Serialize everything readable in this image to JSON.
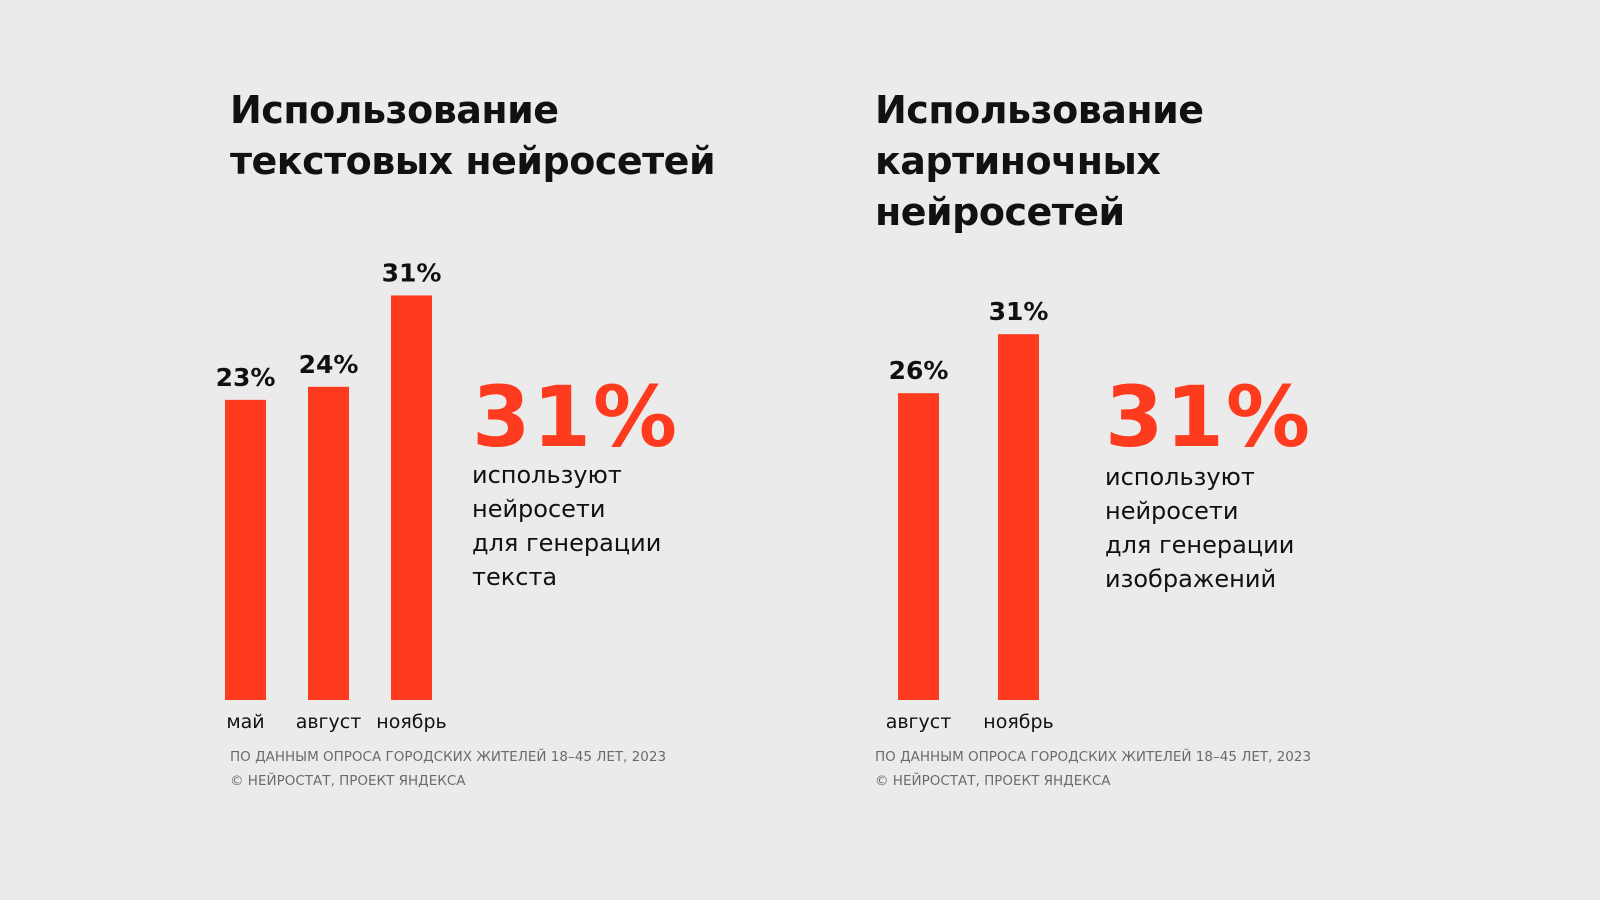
{
  "colors": {
    "background": "#ebebeb",
    "accent": "#ff3b1f",
    "text": "#111111",
    "muted": "#6b6b6b"
  },
  "panels": [
    {
      "title": "Использование текстовых нейросетей",
      "big_number": "31%",
      "description": "используют\nнейросети\nдля генерации\nтекста",
      "source_line1": "ПО ДАННЫМ ОПРОСА ГОРОДСКИХ ЖИТЕЛЕЙ 18–45 ЛЕТ, 2023",
      "source_line2": "© НЕЙРОСТАТ, ПРОЕКТ ЯНДЕКСА"
    },
    {
      "title": "Использование картиночных нейросетей",
      "big_number": "31%",
      "description": "используют\nнейросети\nдля генерации\nизображений",
      "source_line1": "ПО ДАННЫМ ОПРОСА ГОРОДСКИХ ЖИТЕЛЕЙ 18–45 ЛЕТ, 2023",
      "source_line2": "© НЕЙРОСТАТ, ПРОЕКТ ЯНДЕКСА"
    }
  ],
  "chart_data": [
    {
      "type": "bar",
      "title": "Использование текстовых нейросетей",
      "categories": [
        "май",
        "август",
        "ноябрь"
      ],
      "values": [
        23,
        24,
        31
      ],
      "data_labels": [
        "23%",
        "24%",
        "31%"
      ],
      "unit": "%",
      "xlabel": "",
      "ylabel": "",
      "ylim": [
        0,
        31
      ],
      "grid": false,
      "legend": "none"
    },
    {
      "type": "bar",
      "title": "Использование картиночных нейросетей",
      "categories": [
        "август",
        "ноябрь"
      ],
      "values": [
        26,
        31
      ],
      "data_labels": [
        "26%",
        "31%"
      ],
      "unit": "%",
      "xlabel": "",
      "ylabel": "",
      "ylim": [
        0,
        33
      ],
      "grid": false,
      "legend": "none"
    }
  ]
}
